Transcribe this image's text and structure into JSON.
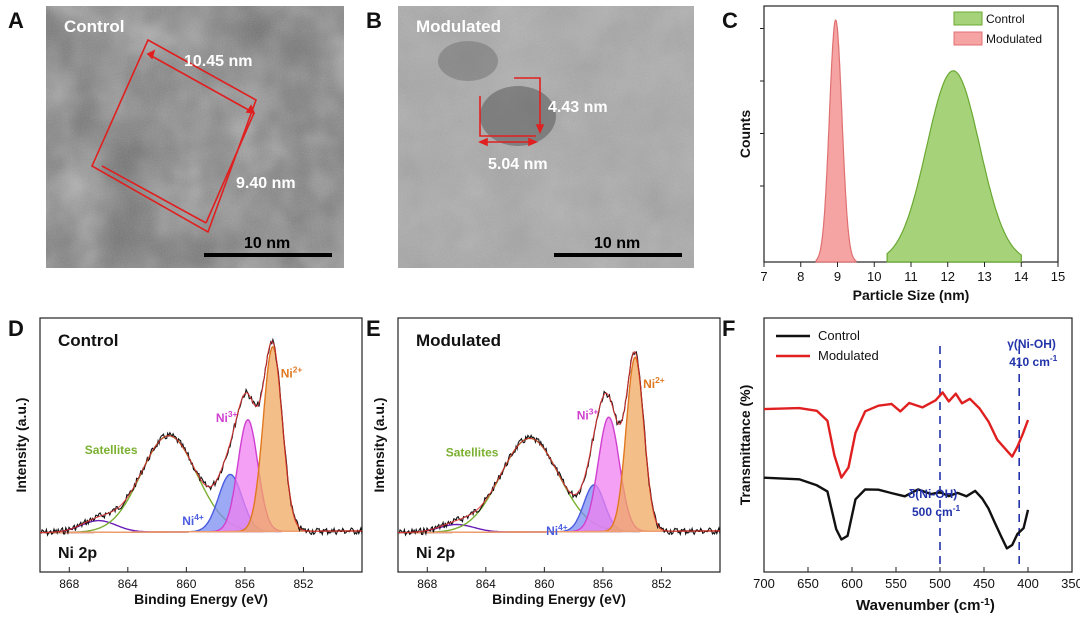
{
  "panels": {
    "A": {
      "letter": "A",
      "title": "Control",
      "dim1": "10.45 nm",
      "dim2": "9.40 nm",
      "scale": "10 nm"
    },
    "B": {
      "letter": "B",
      "title": "Modulated",
      "dim1": "4.43 nm",
      "dim2": "5.04 nm",
      "scale": "10 nm"
    },
    "C": {
      "letter": "C"
    },
    "D": {
      "letter": "D"
    },
    "E": {
      "letter": "E"
    },
    "F": {
      "letter": "F"
    }
  },
  "colors": {
    "control_green": "#a6d37a",
    "control_green_line": "#6aa832",
    "modulated_pink": "#f5a3a3",
    "modulated_red": "#e02020",
    "ni2": "#f0a860",
    "ni3": "#f080f0",
    "ni4": "#7b8cf0",
    "sat": "#7ab030",
    "blue_dash": "#2233aa"
  },
  "chart_data": [
    {
      "id": "C",
      "type": "area",
      "title": "",
      "xlabel": "Particle Size (nm)",
      "ylabel": "Counts",
      "xlim": [
        7,
        15
      ],
      "x_ticks": [
        7,
        8,
        9,
        10,
        11,
        12,
        13,
        14,
        15
      ],
      "legend": "top-right",
      "series": [
        {
          "name": "Control",
          "center": 12.15,
          "sigma": 0.72,
          "peak": 0.79,
          "range": [
            10.35,
            14.0
          ]
        },
        {
          "name": "Modulated",
          "center": 8.95,
          "sigma": 0.17,
          "peak": 1.0,
          "range": [
            8.42,
            9.5
          ]
        }
      ]
    },
    {
      "id": "D",
      "type": "line",
      "title": "Control",
      "corner_label": "Ni 2p",
      "xlabel": "Binding Energy (eV)",
      "ylabel": "Intensity (a.u.)",
      "xlim": [
        870,
        848
      ],
      "x_ticks": [
        868,
        864,
        860,
        856,
        852
      ],
      "peaks": [
        {
          "name": "Ni²⁺",
          "label_base": "Ni",
          "label_sup": "2+",
          "center": 854.1,
          "height": 0.71,
          "width": 0.65
        },
        {
          "name": "Ni³⁺",
          "label_base": "Ni",
          "label_sup": "3+",
          "center": 855.8,
          "height": 0.43,
          "width": 0.68
        },
        {
          "name": "Ni⁴⁺",
          "label_base": "Ni",
          "label_sup": "4+",
          "center": 857.0,
          "height": 0.22,
          "width": 0.8
        },
        {
          "name": "Satellites",
          "label_base": "Satellites",
          "label_sup": "",
          "center": 861.2,
          "height": 0.37,
          "width": 1.9
        },
        {
          "name": "Satellite 2",
          "label_base": "",
          "label_sup": "",
          "center": 866.0,
          "height": 0.045,
          "width": 1.2
        }
      ]
    },
    {
      "id": "E",
      "type": "line",
      "title": "Modulated",
      "corner_label": "Ni 2p",
      "xlabel": "Binding Energy (eV)",
      "ylabel": "Intensity (a.u.)",
      "xlim": [
        870,
        848
      ],
      "x_ticks": [
        868,
        864,
        860,
        856,
        852
      ],
      "peaks": [
        {
          "name": "Ni²⁺",
          "label_base": "Ni",
          "label_sup": "2+",
          "center": 853.8,
          "height": 0.67,
          "width": 0.6
        },
        {
          "name": "Ni³⁺",
          "label_base": "Ni",
          "label_sup": "3+",
          "center": 855.6,
          "height": 0.44,
          "width": 0.72
        },
        {
          "name": "Ni⁴⁺",
          "label_base": "Ni",
          "label_sup": "4+",
          "center": 856.6,
          "height": 0.18,
          "width": 0.7
        },
        {
          "name": "Satellites",
          "label_base": "Satellites",
          "label_sup": "",
          "center": 861.0,
          "height": 0.36,
          "width": 2.0
        },
        {
          "name": "Satellite 2",
          "label_base": "",
          "label_sup": "",
          "center": 866.0,
          "height": 0.03,
          "width": 1.2
        }
      ]
    },
    {
      "id": "F",
      "type": "line",
      "title": "",
      "xlabel": "Wavenumber (cm⁻¹)",
      "xlabel_base": "Wavenumber (cm",
      "xlabel_sup": "-1",
      "xlabel_end": ")",
      "ylabel": "Transmittance (%)",
      "xlim": [
        700,
        350
      ],
      "x_ticks": [
        700,
        650,
        600,
        550,
        500,
        450,
        400,
        350
      ],
      "legend": "top-left",
      "annotations": [
        {
          "line1": "δ(Ni-OH)",
          "line2_base": "500 cm",
          "line2_sup": "-1",
          "x": 500
        },
        {
          "line1": "γ(Ni-OH)",
          "line2_base": "410 cm",
          "line2_sup": "-1",
          "x": 410
        }
      ],
      "series": [
        {
          "name": "Control",
          "points": [
            [
              700,
              0.36
            ],
            [
              660,
              0.35
            ],
            [
              640,
              0.33
            ],
            [
              628,
              0.29
            ],
            [
              618,
              0.1
            ],
            [
              612,
              0.04
            ],
            [
              605,
              0.07
            ],
            [
              596,
              0.25
            ],
            [
              585,
              0.3
            ],
            [
              570,
              0.3
            ],
            [
              555,
              0.29
            ],
            [
              540,
              0.27
            ],
            [
              525,
              0.3
            ],
            [
              510,
              0.28
            ],
            [
              500,
              0.29
            ],
            [
              490,
              0.26
            ],
            [
              480,
              0.29
            ],
            [
              470,
              0.27
            ],
            [
              460,
              0.3
            ],
            [
              452,
              0.25
            ],
            [
              445,
              0.2
            ],
            [
              438,
              0.13
            ],
            [
              430,
              0.06
            ],
            [
              424,
              0.0
            ],
            [
              418,
              0.02
            ],
            [
              412,
              0.07
            ],
            [
              405,
              0.1
            ],
            [
              400,
              0.2
            ]
          ]
        },
        {
          "name": "Modulated",
          "points": [
            [
              700,
              0.72
            ],
            [
              660,
              0.72
            ],
            [
              640,
              0.71
            ],
            [
              628,
              0.66
            ],
            [
              620,
              0.47
            ],
            [
              612,
              0.37
            ],
            [
              604,
              0.42
            ],
            [
              596,
              0.6
            ],
            [
              585,
              0.7
            ],
            [
              570,
              0.73
            ],
            [
              555,
              0.74
            ],
            [
              545,
              0.71
            ],
            [
              535,
              0.75
            ],
            [
              520,
              0.73
            ],
            [
              505,
              0.76
            ],
            [
              497,
              0.8
            ],
            [
              490,
              0.76
            ],
            [
              482,
              0.79
            ],
            [
              475,
              0.75
            ],
            [
              466,
              0.77
            ],
            [
              455,
              0.72
            ],
            [
              445,
              0.65
            ],
            [
              435,
              0.56
            ],
            [
              425,
              0.5
            ],
            [
              418,
              0.47
            ],
            [
              412,
              0.52
            ],
            [
              406,
              0.58
            ],
            [
              400,
              0.66
            ]
          ]
        }
      ]
    }
  ]
}
